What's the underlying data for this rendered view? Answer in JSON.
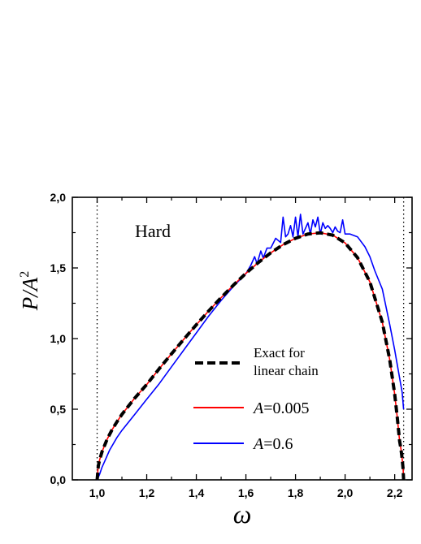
{
  "chart_data": {
    "type": "line",
    "xlabel": "ω",
    "ylabel": {
      "base": "P/A",
      "sup": "2"
    },
    "xlim": [
      0.9,
      2.27
    ],
    "ylim": [
      0.0,
      2.0
    ],
    "xticks": [
      1.0,
      1.2,
      1.4,
      1.6,
      1.8,
      2.0,
      2.2
    ],
    "xtick_labels": [
      "1,0",
      "1,2",
      "1,4",
      "1,6",
      "1,8",
      "2,0",
      "2,2"
    ],
    "yticks": [
      0.0,
      0.5,
      1.0,
      1.5,
      2.0
    ],
    "ytick_labels": [
      "0,0",
      "0,5",
      "1,0",
      "1,5",
      "2,0"
    ],
    "annotation": "Hard",
    "vlines": [
      1.0,
      2.236
    ],
    "legend": {
      "placement": "lower-center",
      "entries": [
        {
          "label": "Exact for",
          "label2": "linear chain",
          "color": "#000000",
          "style": "dashed"
        },
        {
          "label_var": "A",
          "label_val": "=0.005",
          "color": "#ff0000",
          "style": "solid"
        },
        {
          "label_var": "A",
          "label_val": "=0.6",
          "color": "#0000ff",
          "style": "solid"
        }
      ]
    },
    "series": [
      {
        "color": "#000000",
        "style": "dashed",
        "x": [
          1.0,
          1.005,
          1.01,
          1.02,
          1.04,
          1.06,
          1.08,
          1.1,
          1.15,
          1.2,
          1.25,
          1.3,
          1.35,
          1.4,
          1.45,
          1.5,
          1.55,
          1.6,
          1.65,
          1.7,
          1.75,
          1.8,
          1.85,
          1.9,
          1.95,
          2.0,
          2.05,
          2.1,
          2.15,
          2.18,
          2.2,
          2.21,
          2.22,
          2.225,
          2.23,
          2.234,
          2.236
        ],
        "y": [
          0.0,
          0.1,
          0.142,
          0.2,
          0.286,
          0.354,
          0.411,
          0.463,
          0.575,
          0.675,
          0.786,
          0.892,
          0.996,
          1.098,
          1.196,
          1.29,
          1.379,
          1.462,
          1.538,
          1.607,
          1.665,
          1.71,
          1.74,
          1.749,
          1.732,
          1.677,
          1.573,
          1.401,
          1.116,
          0.851,
          0.608,
          0.447,
          0.274,
          0.22,
          0.15,
          0.076,
          0.0
        ]
      },
      {
        "color": "#ff0000",
        "style": "solid",
        "x": [
          1.0,
          1.005,
          1.01,
          1.02,
          1.04,
          1.06,
          1.08,
          1.1,
          1.15,
          1.2,
          1.25,
          1.3,
          1.35,
          1.4,
          1.45,
          1.5,
          1.55,
          1.6,
          1.65,
          1.7,
          1.75,
          1.8,
          1.85,
          1.9,
          1.95,
          2.0,
          2.05,
          2.1,
          2.15,
          2.18,
          2.2,
          2.21,
          2.22,
          2.225,
          2.23,
          2.234,
          2.236
        ],
        "y": [
          0.01,
          0.1,
          0.142,
          0.2,
          0.286,
          0.354,
          0.411,
          0.463,
          0.575,
          0.675,
          0.786,
          0.892,
          0.996,
          1.098,
          1.196,
          1.29,
          1.379,
          1.462,
          1.538,
          1.607,
          1.665,
          1.71,
          1.74,
          1.749,
          1.732,
          1.677,
          1.573,
          1.401,
          1.116,
          0.851,
          0.608,
          0.447,
          0.274,
          0.22,
          0.15,
          0.076,
          0.01
        ]
      },
      {
        "color": "#0000ff",
        "style": "solid",
        "x": [
          1.0,
          1.01,
          1.02,
          1.03,
          1.05,
          1.08,
          1.1,
          1.15,
          1.2,
          1.25,
          1.3,
          1.35,
          1.4,
          1.45,
          1.5,
          1.55,
          1.6,
          1.62,
          1.635,
          1.645,
          1.66,
          1.67,
          1.685,
          1.7,
          1.72,
          1.74,
          1.75,
          1.76,
          1.77,
          1.78,
          1.79,
          1.8,
          1.81,
          1.82,
          1.83,
          1.84,
          1.85,
          1.86,
          1.87,
          1.88,
          1.89,
          1.9,
          1.91,
          1.92,
          1.93,
          1.94,
          1.95,
          1.96,
          1.97,
          1.98,
          1.99,
          2.0,
          2.02,
          2.05,
          2.08,
          2.1,
          2.12,
          2.15,
          2.18,
          2.2,
          2.22,
          2.23,
          2.236
        ],
        "y": [
          0.0,
          0.04,
          0.09,
          0.13,
          0.21,
          0.3,
          0.35,
          0.46,
          0.57,
          0.68,
          0.8,
          0.92,
          1.04,
          1.16,
          1.27,
          1.37,
          1.46,
          1.52,
          1.58,
          1.53,
          1.62,
          1.57,
          1.64,
          1.64,
          1.71,
          1.68,
          1.86,
          1.72,
          1.74,
          1.8,
          1.72,
          1.86,
          1.72,
          1.88,
          1.74,
          1.78,
          1.82,
          1.74,
          1.84,
          1.79,
          1.86,
          1.74,
          1.82,
          1.78,
          1.8,
          1.78,
          1.75,
          1.79,
          1.76,
          1.75,
          1.84,
          1.74,
          1.74,
          1.72,
          1.65,
          1.58,
          1.48,
          1.35,
          1.1,
          0.92,
          0.72,
          0.62,
          0.5
        ]
      }
    ]
  }
}
